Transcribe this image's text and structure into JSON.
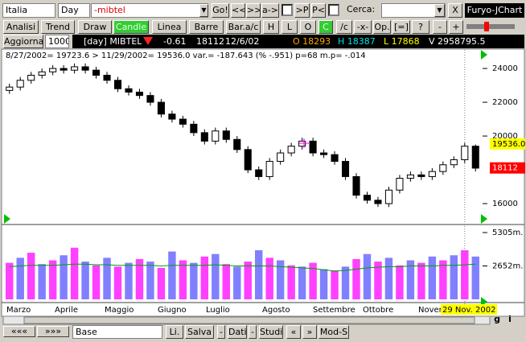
{
  "toolbar": {
    "market": "Italia",
    "period": "Day",
    "symbol": "-mibtel",
    "buttons": [
      "Go!",
      "<<",
      ">>",
      "a->",
      ">P",
      "P<"
    ],
    "search_label": "Cerca:",
    "close": "X",
    "brand": "Furyo-JChart"
  },
  "tabs": [
    "Analisi",
    "Trend",
    "Draw",
    "Candle",
    "Linea",
    "Barre",
    "Bar.a/c",
    "H",
    "L",
    "O",
    "C",
    "/c",
    "-x-",
    "Op.",
    "[=]",
    "?",
    "-",
    "+"
  ],
  "active_tabs": [
    3,
    10
  ],
  "info": {
    "refresh": "Aggiorna",
    "count": "1000",
    "name": "[day] MIBTEL",
    "change": "-0.61",
    "last": "18112",
    "date": "12/6/02",
    "open": "O 18293",
    "high": "H 18387",
    "low": "L 17868",
    "volume": "V 2958795.5"
  },
  "chart_data": {
    "type": "candlestick",
    "summary": "8/27/2002= 19723.6 > 11/29/2002= 19536.0 var.= -187.643 (% -.951) p=68 m.p= -.014",
    "open": [
      22700,
      22900,
      23300,
      23600,
      23800,
      24000,
      23900,
      24100,
      23900,
      23600,
      23300,
      22800,
      22600,
      22400,
      22000,
      21300,
      21000,
      20700,
      20200,
      19700,
      20300,
      19800,
      19200,
      18000,
      17600,
      18500,
      19000,
      19400,
      19700,
      19000,
      18900,
      18500,
      17600,
      16500,
      16200,
      16000,
      16800,
      17500,
      17700,
      17600,
      17900,
      18300,
      18600,
      19400
    ],
    "high": [
      23100,
      23500,
      23800,
      24000,
      24200,
      24200,
      24300,
      24300,
      24100,
      23800,
      23500,
      23000,
      22800,
      22600,
      22200,
      21500,
      21200,
      20900,
      20400,
      20500,
      20500,
      20000,
      19400,
      18200,
      18700,
      19200,
      19600,
      19900,
      19900,
      19200,
      19100,
      18700,
      17800,
      16700,
      16400,
      17000,
      17700,
      17900,
      17900,
      18100,
      18500,
      18800,
      19600,
      19500
    ],
    "low": [
      22500,
      22700,
      23100,
      23400,
      23600,
      23700,
      23700,
      23700,
      23400,
      23100,
      22600,
      22400,
      22200,
      21800,
      21100,
      20800,
      20500,
      20000,
      19500,
      19500,
      19600,
      19000,
      17800,
      17400,
      17400,
      18300,
      18800,
      19200,
      18800,
      18700,
      18300,
      17400,
      16300,
      16000,
      15800,
      15800,
      16600,
      17300,
      17400,
      17400,
      17700,
      18100,
      18400,
      17900
    ],
    "close": [
      22900,
      23300,
      23600,
      23800,
      24000,
      23900,
      24100,
      23900,
      23600,
      23300,
      22800,
      22600,
      22400,
      22000,
      21300,
      21000,
      20700,
      20200,
      19700,
      20300,
      19800,
      19200,
      18000,
      17600,
      18500,
      19000,
      19400,
      19700,
      19000,
      18900,
      18500,
      17600,
      16500,
      16200,
      16000,
      16800,
      17500,
      17700,
      17600,
      17900,
      18300,
      18600,
      19400,
      18100
    ],
    "ylim": [
      14810,
      25100
    ],
    "yticks": [
      16000,
      20000,
      22000,
      24000
    ],
    "price_markers": [
      {
        "value": 19536,
        "label": "19536.0",
        "color": "#ffff00"
      },
      {
        "value": 18112,
        "label": "18112",
        "color": "#ff0000"
      }
    ],
    "volume": {
      "values": [
        2900,
        3300,
        3700,
        2800,
        3100,
        3500,
        4100,
        3000,
        2700,
        3300,
        2600,
        2900,
        3200,
        3000,
        2500,
        3800,
        3100,
        2900,
        3400,
        3600,
        2800,
        2600,
        3000,
        3900,
        3300,
        3100,
        2700,
        2600,
        2900,
        2400,
        2300,
        2600,
        3200,
        3600,
        3000,
        3300,
        2700,
        3100,
        2900,
        3400,
        3100,
        3500,
        3900,
        3400
      ],
      "average": [
        2600,
        2650,
        2700,
        2700,
        2700,
        2750,
        2800,
        2800,
        2750,
        2750,
        2700,
        2700,
        2700,
        2700,
        2650,
        2700,
        2700,
        2700,
        2700,
        2750,
        2700,
        2650,
        2650,
        2650,
        2650,
        2600,
        2550,
        2500,
        2450,
        2350,
        2250,
        2300,
        2400,
        2500,
        2550,
        2600,
        2600,
        2650,
        2650,
        2650,
        2700,
        2700,
        2750,
        2800
      ],
      "ylim": [
        0,
        5880
      ],
      "yticks": [
        {
          "value": 5305,
          "label": "5305m."
        },
        {
          "value": 2652,
          "label": "2652m."
        }
      ]
    },
    "months": [
      "Marzo",
      "Aprile",
      "Maggio",
      "Giugno",
      "Luglio",
      "Agosto",
      "Settembre",
      "Ottobre",
      "Novembre"
    ],
    "cursor_date": "29 Nov. 2002"
  },
  "bottom": {
    "nav": [
      "«««",
      "»»»"
    ],
    "input": "Base",
    "buttons": [
      "Li.",
      "Salva",
      "-",
      "Dati",
      "-",
      "Studi",
      "«",
      "»",
      "Mod-S"
    ],
    "right": [
      "g",
      "i"
    ]
  }
}
